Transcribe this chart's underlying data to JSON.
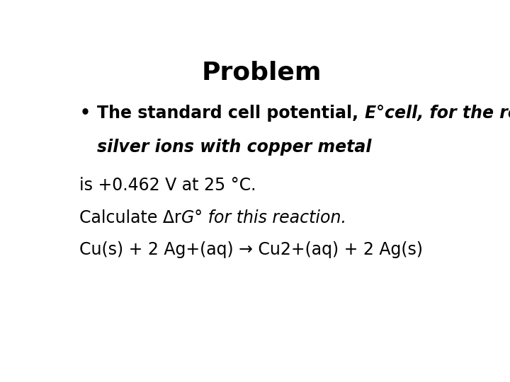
{
  "title": "Problem",
  "title_fontsize": 26,
  "title_fontweight": "bold",
  "background_color": "#ffffff",
  "text_color": "#000000",
  "bullet_symbol": "•",
  "bullet_line1_bold": "The standard cell potential, ",
  "bullet_line1_bold_italic": "E°cell, for the reduction of",
  "bullet_line2_bold_italic": "silver ions with copper metal",
  "line3": "is +0.462 V at 25 °C.",
  "line4_normal": "Calculate Δr",
  "line4_italic": "G° for this reaction.",
  "line5": "Cu(s) + 2 Ag+(aq) → Cu2+(aq) + 2 Ag(s)",
  "body_fontsize": 17,
  "bullet_fontsize": 17,
  "font_family": "DejaVu Sans"
}
